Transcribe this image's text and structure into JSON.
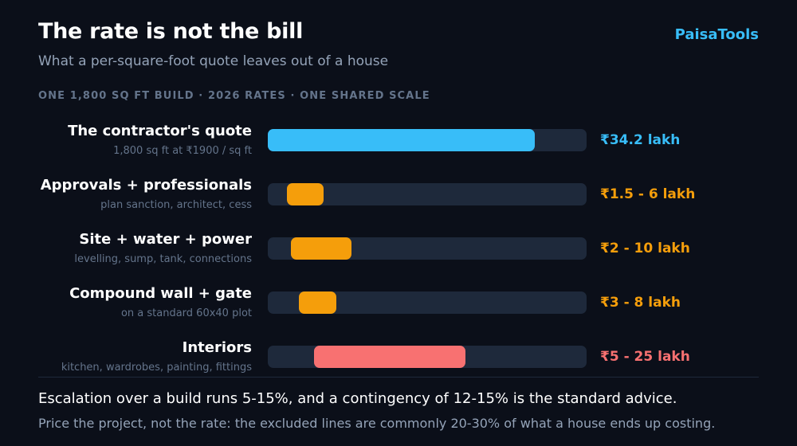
{
  "header": {
    "title": "The rate is not the bill",
    "subtitle": "What a per-square-foot quote leaves out of a house",
    "brand": "PaisaTools",
    "kicker": "ONE 1,800 SQ FT BUILD · 2026 RATES · ONE SHARED SCALE"
  },
  "chart_data": {
    "type": "bar",
    "unit": "lakh",
    "categories": [
      "The contractor's quote",
      "Approvals + professionals",
      "Site + water + power",
      "Compound wall + gate",
      "Interiors"
    ],
    "series": [
      {
        "low": [
          34.2,
          1.5,
          2,
          3,
          5
        ],
        "high": [
          34.2,
          6,
          10,
          8,
          25
        ]
      }
    ],
    "rows": [
      {
        "label": "The contractor's quote",
        "sub": "1,800 sq ft at ₹1900 / sq ft",
        "low": 34.2,
        "high": 34.2,
        "value_label": "₹34.2 lakh",
        "color": "#38bdf8"
      },
      {
        "label": "Approvals + professionals",
        "sub": "plan sanction, architect, cess",
        "low": 1.5,
        "high": 6,
        "value_label": "₹1.5 - 6 lakh",
        "color": "#f59e0b"
      },
      {
        "label": "Site + water + power",
        "sub": "levelling, sump, tank, connections",
        "low": 2,
        "high": 10,
        "value_label": "₹2 - 10 lakh",
        "color": "#f59e0b"
      },
      {
        "label": "Compound wall + gate",
        "sub": "on a standard 60x40 plot",
        "low": 3,
        "high": 8,
        "value_label": "₹3 - 8 lakh",
        "color": "#f59e0b"
      },
      {
        "label": "Interiors",
        "sub": "kitchen, wardrobes, painting, fittings",
        "low": 5,
        "high": 25,
        "value_label": "₹5 - 25 lakh",
        "color": "#f87171"
      }
    ],
    "xlim": [
      0,
      40
    ],
    "grid": false,
    "legend": "none"
  },
  "footer": {
    "note": "Escalation over a build runs 5-15%, and a contingency of 12-15% is the standard advice.",
    "takeaway": "Price the project, not the rate: the excluded lines are commonly 20-30% of what a house ends up costing."
  }
}
